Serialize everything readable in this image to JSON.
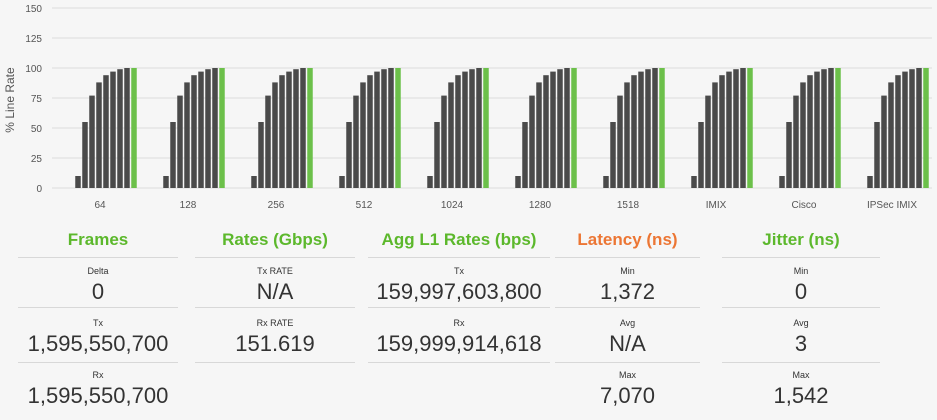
{
  "colors": {
    "bar_dark": "#4a4a4a",
    "bar_accent": "#6cc04a",
    "title_green": "#5cb82c",
    "title_orange": "#ec7634"
  },
  "chart_data": {
    "type": "bar",
    "ylabel": "% Line Rate",
    "ylim": [
      0,
      150
    ],
    "yticks": [
      "0",
      "25",
      "50",
      "75",
      "100",
      "125",
      "150"
    ],
    "categories": [
      "64",
      "128",
      "256",
      "512",
      "1024",
      "1280",
      "1518",
      "IMIX",
      "Cisco",
      "IPSec IMIX"
    ],
    "step_values": [
      10,
      55,
      77,
      88,
      94,
      97,
      99,
      100,
      100
    ],
    "grid": true,
    "legend": "none"
  },
  "stats": {
    "frames": {
      "title": "Frames",
      "rows": [
        {
          "label": "Delta",
          "value": "0"
        },
        {
          "label": "Tx",
          "value": "1,595,550,700"
        },
        {
          "label": "Rx",
          "value": "1,595,550,700"
        }
      ]
    },
    "rates": {
      "title": "Rates (Gbps)",
      "rows": [
        {
          "label": "Tx RATE",
          "value": "N/A"
        },
        {
          "label": "Rx RATE",
          "value": "151.619"
        }
      ]
    },
    "agg": {
      "title": "Agg L1 Rates (bps)",
      "rows": [
        {
          "label": "Tx",
          "value": "159,997,603,800"
        },
        {
          "label": "Rx",
          "value": "159,999,914,618"
        }
      ]
    },
    "latency": {
      "title": "Latency (ns)",
      "rows": [
        {
          "label": "Min",
          "value": "1,372"
        },
        {
          "label": "Avg",
          "value": "N/A"
        },
        {
          "label": "Max",
          "value": "7,070"
        }
      ]
    },
    "jitter": {
      "title": "Jitter (ns)",
      "rows": [
        {
          "label": "Min",
          "value": "0"
        },
        {
          "label": "Avg",
          "value": "3"
        },
        {
          "label": "Max",
          "value": "1,542"
        }
      ]
    }
  }
}
